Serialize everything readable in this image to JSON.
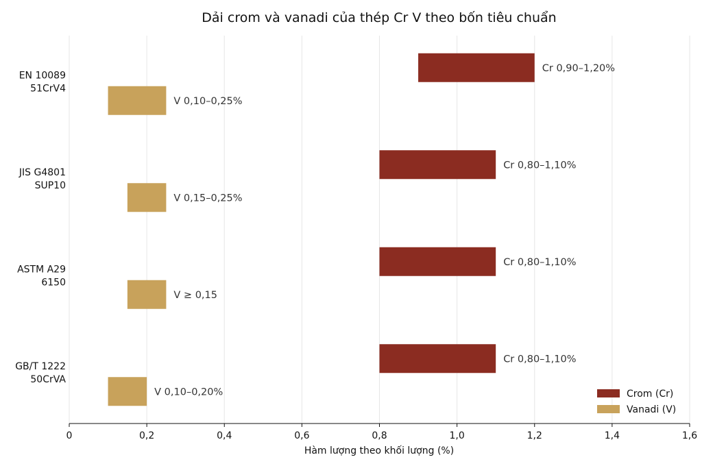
{
  "chart_data": {
    "type": "bar",
    "orientation": "horizontal",
    "range_bars": true,
    "title": "Dải crom và vanadi của thép Cr V theo bốn tiêu chuẩn",
    "xlabel": "Hàm lượng theo khối lượng (%)",
    "xlim": [
      0,
      1.6
    ],
    "xticks": [
      "0",
      "0,2",
      "0,4",
      "0,6",
      "0,8",
      "1,0",
      "1,2",
      "1,4",
      "1,6"
    ],
    "grid": "vertical",
    "legend_position": "bottom-right",
    "categories": [
      {
        "lines": [
          "EN 10089",
          "51CrV4"
        ]
      },
      {
        "lines": [
          "JIS G4801",
          "SUP10"
        ]
      },
      {
        "lines": [
          "ASTM A29",
          "6150"
        ]
      },
      {
        "lines": [
          "GB/T 1222",
          "50CrVA"
        ]
      }
    ],
    "series": [
      {
        "name": "Crom (Cr)",
        "color": "#8b2c21",
        "ranges": [
          [
            0.9,
            1.2
          ],
          [
            0.8,
            1.1
          ],
          [
            0.8,
            1.1
          ],
          [
            0.8,
            1.1
          ]
        ],
        "labels": [
          "Cr 0,90–1,20%",
          "Cr 0,80–1,10%",
          "Cr 0,80–1,10%",
          "Cr 0,80–1,10%"
        ]
      },
      {
        "name": "Vanadi (V)",
        "color": "#c8a25b",
        "ranges": [
          [
            0.1,
            0.25
          ],
          [
            0.15,
            0.25
          ],
          [
            0.15,
            0.25
          ],
          [
            0.1,
            0.2
          ]
        ],
        "labels": [
          "V 0,10–0,25%",
          "V 0,15–0,25%",
          "V ≥ 0,15",
          "V 0,10–0,20%"
        ]
      }
    ]
  }
}
